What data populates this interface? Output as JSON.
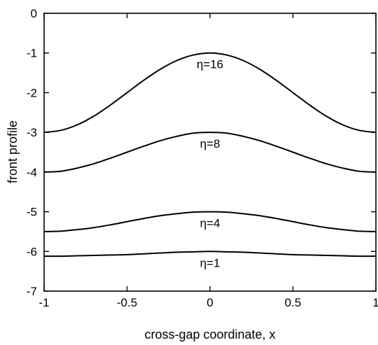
{
  "chart_data": {
    "type": "line",
    "xlabel": "cross-gap coordinate, x",
    "ylabel": "front profile",
    "xlim": [
      -1,
      1
    ],
    "ylim": [
      -7,
      0
    ],
    "x_ticks": [
      "-1",
      "-0.5",
      "0",
      "0.5",
      "1"
    ],
    "y_ticks": [
      "0",
      "-1",
      "-2",
      "-3",
      "-4",
      "-5",
      "-6",
      "-7"
    ],
    "grid": false,
    "legend": "none",
    "line_color": "#000000",
    "x": [
      -1.0,
      -0.9,
      -0.8,
      -0.7,
      -0.6,
      -0.5,
      -0.4,
      -0.3,
      -0.2,
      -0.1,
      0.0,
      0.1,
      0.2,
      0.3,
      0.4,
      0.5,
      0.6,
      0.7,
      0.8,
      0.9,
      1.0
    ],
    "series": [
      {
        "name": "η=16",
        "values": [
          -3.0,
          -2.95,
          -2.81,
          -2.59,
          -2.31,
          -2.0,
          -1.69,
          -1.41,
          -1.19,
          -1.05,
          -1.0,
          -1.05,
          -1.19,
          -1.41,
          -1.69,
          -2.0,
          -2.31,
          -2.59,
          -2.81,
          -2.95,
          -3.0
        ]
      },
      {
        "name": "η=8",
        "values": [
          -4.0,
          -3.98,
          -3.9,
          -3.79,
          -3.65,
          -3.5,
          -3.35,
          -3.21,
          -3.1,
          -3.02,
          -3.0,
          -3.02,
          -3.1,
          -3.21,
          -3.35,
          -3.5,
          -3.65,
          -3.79,
          -3.9,
          -3.98,
          -4.0
        ]
      },
      {
        "name": "η=4",
        "values": [
          -5.5,
          -5.49,
          -5.45,
          -5.4,
          -5.33,
          -5.25,
          -5.17,
          -5.1,
          -5.05,
          -5.01,
          -5.0,
          -5.01,
          -5.05,
          -5.1,
          -5.17,
          -5.25,
          -5.33,
          -5.4,
          -5.45,
          -5.49,
          -5.5
        ]
      },
      {
        "name": "η=1",
        "values": [
          -6.12,
          -6.12,
          -6.11,
          -6.1,
          -6.09,
          -6.08,
          -6.06,
          -6.04,
          -6.02,
          -6.01,
          -6.0,
          -6.01,
          -6.02,
          -6.04,
          -6.06,
          -6.08,
          -6.09,
          -6.1,
          -6.11,
          -6.12,
          -6.12
        ]
      }
    ]
  }
}
